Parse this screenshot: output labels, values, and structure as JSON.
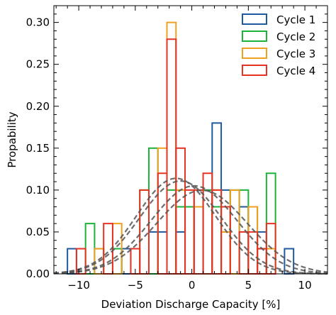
{
  "chart_data": {
    "type": "histogram",
    "xlabel": "Deviation Discharge Capacity [%]",
    "ylabel": "Propability",
    "xlim": [
      -12.2,
      12.0
    ],
    "ylim": [
      0,
      0.32
    ],
    "xticks": [
      -10,
      -5,
      0,
      5,
      10
    ],
    "yticks": [
      0.0,
      0.05,
      0.1,
      0.15,
      0.2,
      0.25,
      0.3
    ],
    "ytick_labels": [
      "0.00",
      "0.05",
      "0.10",
      "0.15",
      "0.20",
      "0.25",
      "0.30"
    ],
    "xtick_labels": [
      "−10",
      "−5",
      "0",
      "5",
      "10"
    ],
    "legend_position": "top-right",
    "bin_width": 0.8,
    "series": [
      {
        "name": "Cycle 1",
        "color": "#1f5a9e",
        "bins": [
          [
            -11.0,
            0.03
          ],
          [
            -8.6,
            0.03
          ],
          [
            -6.2,
            0.03
          ],
          [
            -3.8,
            0.05
          ],
          [
            -3.0,
            0.05
          ],
          [
            -1.4,
            0.05
          ],
          [
            -0.6,
            0.08
          ],
          [
            1.0,
            0.1
          ],
          [
            1.8,
            0.18
          ],
          [
            2.6,
            0.1
          ],
          [
            4.2,
            0.08
          ],
          [
            5.8,
            0.05
          ],
          [
            8.2,
            0.03
          ]
        ]
      },
      {
        "name": "Cycle 2",
        "color": "#1db33a",
        "bins": [
          [
            -9.4,
            0.06
          ],
          [
            -7.0,
            0.03
          ],
          [
            -4.6,
            0.1
          ],
          [
            -3.8,
            0.15
          ],
          [
            -2.2,
            0.1
          ],
          [
            -1.4,
            0.08
          ],
          [
            -0.6,
            0.08
          ],
          [
            1.0,
            0.1
          ],
          [
            1.8,
            0.08
          ],
          [
            2.6,
            0.05
          ],
          [
            3.4,
            0.1
          ],
          [
            4.2,
            0.1
          ],
          [
            5.0,
            0.08
          ],
          [
            5.8,
            0.03
          ],
          [
            6.6,
            0.12
          ]
        ]
      },
      {
        "name": "Cycle 3",
        "color": "#f0a020",
        "bins": [
          [
            -8.6,
            0.03
          ],
          [
            -7.0,
            0.06
          ],
          [
            -3.0,
            0.15
          ],
          [
            -2.2,
            0.3
          ],
          [
            -1.4,
            0.1
          ],
          [
            0.2,
            0.08
          ],
          [
            1.8,
            0.1
          ],
          [
            2.6,
            0.05
          ],
          [
            3.4,
            0.1
          ],
          [
            5.0,
            0.08
          ],
          [
            6.6,
            0.03
          ]
        ]
      },
      {
        "name": "Cycle 4",
        "color": "#e63323",
        "bins": [
          [
            -10.2,
            0.03
          ],
          [
            -7.8,
            0.06
          ],
          [
            -5.4,
            0.03
          ],
          [
            -4.6,
            0.1
          ],
          [
            -3.0,
            0.12
          ],
          [
            -2.2,
            0.28
          ],
          [
            -1.4,
            0.15
          ],
          [
            -0.6,
            0.1
          ],
          [
            0.2,
            0.1
          ],
          [
            1.0,
            0.12
          ],
          [
            1.8,
            0.1
          ],
          [
            2.6,
            0.08
          ],
          [
            4.2,
            0.05
          ],
          [
            5.0,
            0.05
          ],
          [
            5.8,
            0.03
          ],
          [
            6.6,
            0.06
          ]
        ]
      }
    ],
    "kde_color": "#555555",
    "kde_curves": [
      {
        "mu": -1.4,
        "sigma": 3.5
      },
      {
        "mu": 0.9,
        "sigma": 4.0
      },
      {
        "mu": 0.2,
        "sigma": 3.8
      },
      {
        "mu": -1.0,
        "sigma": 3.6
      }
    ]
  }
}
